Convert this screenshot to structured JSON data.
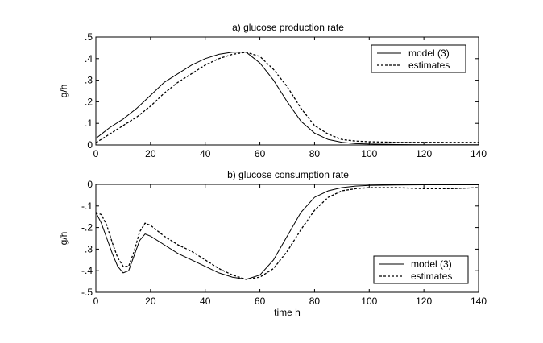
{
  "chart_data": [
    {
      "type": "line",
      "title": "a) glucose production rate",
      "xlabel": "",
      "ylabel": "g/h",
      "xlim": [
        0,
        140
      ],
      "ylim": [
        0,
        0.5
      ],
      "xticks": [
        0,
        20,
        40,
        60,
        80,
        100,
        120,
        140
      ],
      "yticks": [
        0,
        0.1,
        0.2,
        0.3,
        0.4,
        0.5
      ],
      "legend_position": "top-right",
      "series": [
        {
          "name": "model (3)",
          "style": "solid",
          "x": [
            0,
            5,
            10,
            15,
            20,
            25,
            30,
            35,
            40,
            45,
            50,
            55,
            60,
            65,
            70,
            75,
            80,
            85,
            90,
            95,
            100,
            110,
            120,
            130,
            140
          ],
          "y": [
            0.03,
            0.08,
            0.12,
            0.17,
            0.23,
            0.29,
            0.33,
            0.37,
            0.4,
            0.42,
            0.43,
            0.43,
            0.38,
            0.3,
            0.2,
            0.11,
            0.055,
            0.025,
            0.012,
            0.006,
            0.004,
            0.002,
            0.001,
            0.001,
            0.001
          ]
        },
        {
          "name": "estimates",
          "style": "dashed",
          "x": [
            0,
            5,
            10,
            15,
            20,
            25,
            30,
            35,
            40,
            45,
            50,
            55,
            60,
            65,
            70,
            75,
            80,
            85,
            90,
            95,
            100,
            110,
            120,
            130,
            140
          ],
          "y": [
            0.01,
            0.05,
            0.09,
            0.13,
            0.18,
            0.24,
            0.29,
            0.33,
            0.37,
            0.4,
            0.42,
            0.43,
            0.41,
            0.35,
            0.27,
            0.17,
            0.09,
            0.05,
            0.025,
            0.018,
            0.015,
            0.012,
            0.012,
            0.012,
            0.012
          ]
        }
      ]
    },
    {
      "type": "line",
      "title": "b) glucose consumption rate",
      "xlabel": "time h",
      "ylabel": "g/h",
      "xlim": [
        0,
        140
      ],
      "ylim": [
        -0.5,
        0
      ],
      "xticks": [
        0,
        20,
        40,
        60,
        80,
        100,
        120,
        140
      ],
      "yticks": [
        0,
        -0.1,
        -0.2,
        -0.3,
        -0.4,
        -0.5
      ],
      "legend_position": "bottom-right",
      "series": [
        {
          "name": "model (3)",
          "style": "solid",
          "x": [
            0,
            2,
            4,
            6,
            8,
            10,
            12,
            14,
            16,
            18,
            20,
            25,
            30,
            35,
            40,
            45,
            50,
            55,
            60,
            65,
            70,
            75,
            80,
            85,
            90,
            95,
            100,
            110,
            120,
            130,
            140
          ],
          "y": [
            -0.13,
            -0.18,
            -0.25,
            -0.32,
            -0.38,
            -0.41,
            -0.4,
            -0.33,
            -0.26,
            -0.23,
            -0.24,
            -0.28,
            -0.32,
            -0.35,
            -0.38,
            -0.41,
            -0.43,
            -0.44,
            -0.42,
            -0.35,
            -0.24,
            -0.13,
            -0.06,
            -0.03,
            -0.015,
            -0.008,
            -0.005,
            -0.003,
            -0.002,
            -0.002,
            -0.002
          ]
        },
        {
          "name": "estimates",
          "style": "dashed",
          "x": [
            0,
            2,
            4,
            6,
            8,
            10,
            12,
            14,
            16,
            18,
            20,
            25,
            30,
            35,
            40,
            45,
            50,
            55,
            60,
            65,
            70,
            75,
            80,
            85,
            90,
            95,
            100,
            110,
            120,
            130,
            140
          ],
          "y": [
            -0.13,
            -0.14,
            -0.19,
            -0.27,
            -0.34,
            -0.38,
            -0.38,
            -0.31,
            -0.22,
            -0.18,
            -0.19,
            -0.24,
            -0.28,
            -0.31,
            -0.35,
            -0.39,
            -0.42,
            -0.44,
            -0.43,
            -0.39,
            -0.31,
            -0.21,
            -0.12,
            -0.06,
            -0.03,
            -0.02,
            -0.015,
            -0.015,
            -0.02,
            -0.02,
            -0.015
          ]
        }
      ]
    }
  ]
}
